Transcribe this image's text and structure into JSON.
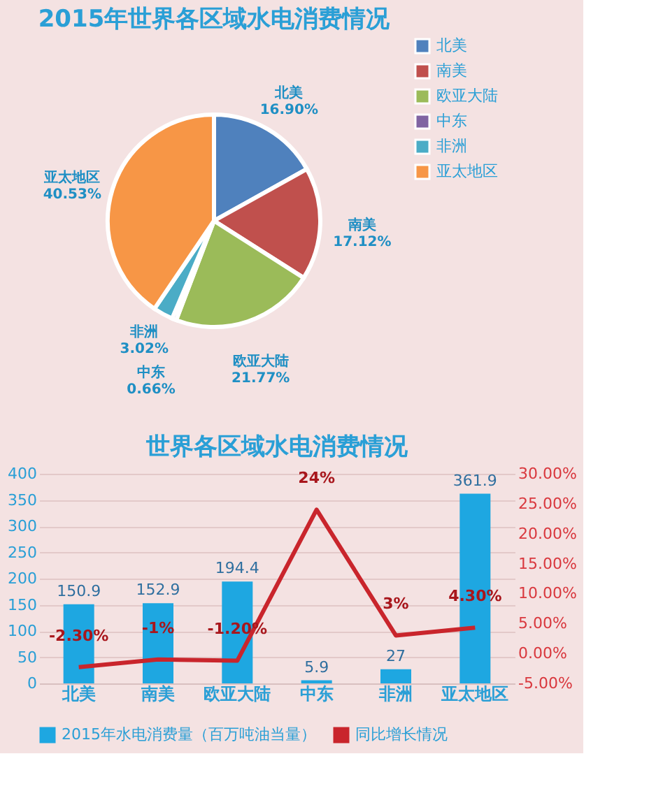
{
  "chart_data": [
    {
      "type": "pie",
      "title": "2015年世界各区域水电消费情况",
      "categories": [
        "北美",
        "南美",
        "欧亚大陆",
        "中东",
        "非洲",
        "亚太地区"
      ],
      "values": [
        16.9,
        17.12,
        21.77,
        0.66,
        3.02,
        40.53
      ],
      "colors": [
        "#4f81bd",
        "#c0504d",
        "#9bbb59",
        "#8064a2",
        "#4bacc6",
        "#f79646"
      ],
      "value_labels": [
        "16.90%",
        "17.12%",
        "21.77%",
        "0.66%",
        "3.02%",
        "40.53%"
      ],
      "legend": "right"
    },
    {
      "type": "bar",
      "title": "世界各区域水电消费情况",
      "categories": [
        "北美",
        "南美",
        "欧亚大陆",
        "中东",
        "非洲",
        "亚太地区"
      ],
      "series": [
        {
          "name": "2015年水电消费量（百万吨油当量）",
          "type": "bar",
          "color": "#1ea7e1",
          "values": [
            150.9,
            152.9,
            194.4,
            5.9,
            27,
            361.9
          ],
          "value_labels": [
            "150.9",
            "152.9",
            "194.4",
            "5.9",
            "27",
            "361.9"
          ]
        },
        {
          "name": "同比增长情况",
          "type": "line",
          "axis": "y2",
          "color": "#c9252c",
          "values": [
            -2.3,
            -1,
            -1.2,
            24,
            3,
            4.3
          ],
          "value_labels": [
            "-2.30%",
            "-1%",
            "-1.20%",
            "24%",
            "3%",
            "4.30%"
          ]
        }
      ],
      "ylim": [
        0,
        400
      ],
      "yticks": [
        0,
        50,
        100,
        150,
        200,
        250,
        300,
        350,
        400
      ],
      "y2lim": [
        -5,
        30
      ],
      "y2ticks": [
        {
          "value": -5,
          "label": "-5.00%"
        },
        {
          "value": 0,
          "label": "0.00%"
        },
        {
          "value": 5,
          "label": "5.00%"
        },
        {
          "value": 10,
          "label": "10.00%"
        },
        {
          "value": 15,
          "label": "15.00%"
        },
        {
          "value": 20,
          "label": "20.00%"
        },
        {
          "value": 25,
          "label": "25.00%"
        },
        {
          "value": 30,
          "label": "30.00%"
        }
      ],
      "grid": "y",
      "legend": "bottom",
      "marker": "none",
      "line_style": "solid"
    }
  ]
}
